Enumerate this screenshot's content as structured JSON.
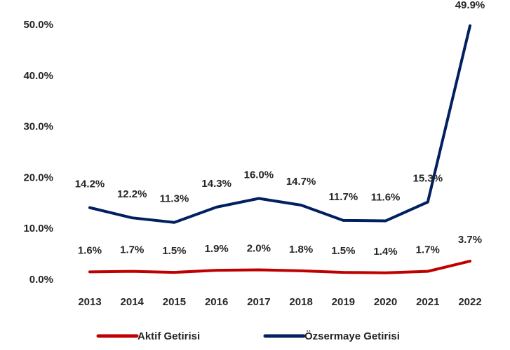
{
  "chart_data": {
    "type": "line",
    "categories": [
      "2013",
      "2014",
      "2015",
      "2016",
      "2017",
      "2018",
      "2019",
      "2020",
      "2021",
      "2022"
    ],
    "series": [
      {
        "name": "Aktif Getirisi",
        "color": "#c00000",
        "values": [
          1.6,
          1.7,
          1.5,
          1.9,
          2.0,
          1.8,
          1.5,
          1.4,
          1.7,
          3.7
        ],
        "value_labels": [
          "1.6%",
          "1.7%",
          "1.5%",
          "1.9%",
          "2.0%",
          "1.8%",
          "1.5%",
          "1.4%",
          "1.7%",
          "3.7%"
        ]
      },
      {
        "name": "Özsermaye Getirisi",
        "color": "#002060",
        "values": [
          14.2,
          12.2,
          11.3,
          14.3,
          16.0,
          14.7,
          11.7,
          11.6,
          15.3,
          49.9
        ],
        "value_labels": [
          "14.2%",
          "12.2%",
          "11.3%",
          "14.3%",
          "16.0%",
          "14.7%",
          "11.7%",
          "11.6%",
          "15.3%",
          "49.9%"
        ]
      }
    ],
    "ylim": [
      0,
      50
    ],
    "yticks": [
      {
        "value": 0,
        "label": "0.0%"
      },
      {
        "value": 10,
        "label": "10.0%"
      },
      {
        "value": 20,
        "label": "20.0%"
      },
      {
        "value": 30,
        "label": "30.0%"
      },
      {
        "value": 40,
        "label": "40.0%"
      },
      {
        "value": 50,
        "label": "50.0%"
      }
    ],
    "grid": false,
    "legend": "bottom"
  }
}
